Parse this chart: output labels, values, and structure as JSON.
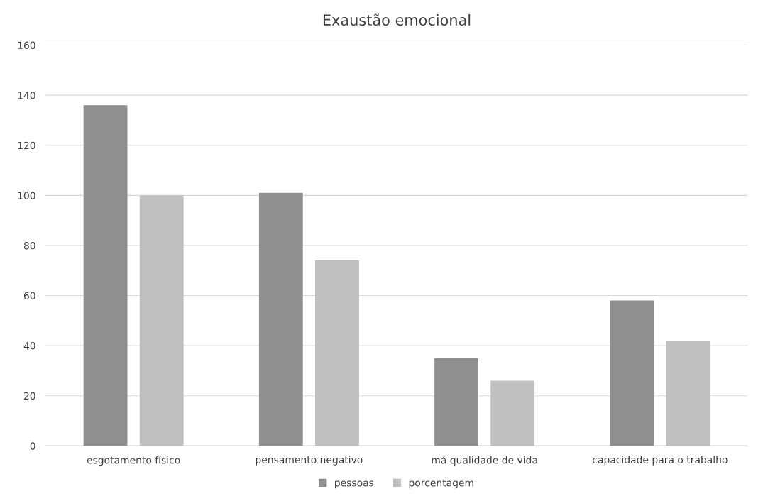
{
  "chart_data": {
    "type": "bar",
    "title": "Exaustão emocional",
    "categories": [
      "esgotamento físico",
      "pensamento negativo",
      "má qualidade de vida",
      "capacidade para o trabalho"
    ],
    "series": [
      {
        "name": "pessoas",
        "color": "#8f8f8f",
        "values": [
          136,
          101,
          35,
          58
        ]
      },
      {
        "name": "porcentagem",
        "color": "#bfbfbf",
        "values": [
          100,
          74,
          26,
          42
        ]
      }
    ],
    "ylim": [
      0,
      160
    ],
    "yticks": [
      0,
      20,
      40,
      60,
      80,
      100,
      120,
      140,
      160
    ],
    "grid": "y",
    "legend": "bottom"
  }
}
